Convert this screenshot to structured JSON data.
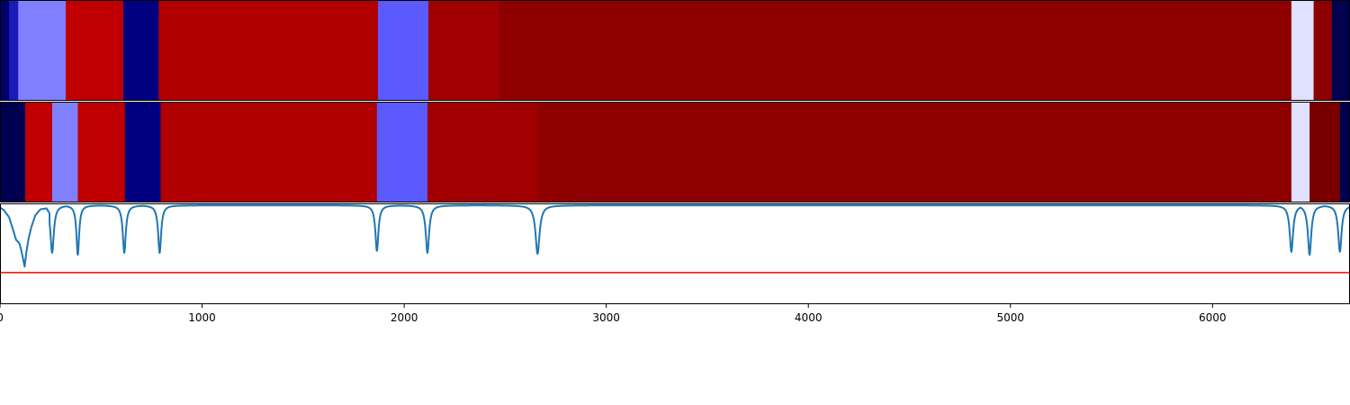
{
  "chart_data": {
    "type": "heatmap",
    "title": "",
    "xlabel": "",
    "ylabel": "",
    "xlim": [
      0,
      6680
    ],
    "grid": false,
    "x_ticks": [
      0,
      1000,
      2000,
      3000,
      4000,
      5000,
      6000
    ],
    "x_tick_labels": [
      "0",
      "1000",
      "2000",
      "3000",
      "4000",
      "5000",
      "6000"
    ],
    "segment_rows": [
      {
        "segments": [
          {
            "start": 0,
            "end": 45,
            "color": "#00006a"
          },
          {
            "start": 45,
            "end": 90,
            "color": "#1a1ab8"
          },
          {
            "start": 90,
            "end": 325,
            "color": "#8080ff"
          },
          {
            "start": 325,
            "end": 610,
            "color": "#c00000"
          },
          {
            "start": 610,
            "end": 785,
            "color": "#000080"
          },
          {
            "start": 785,
            "end": 1870,
            "color": "#b00000"
          },
          {
            "start": 1870,
            "end": 2120,
            "color": "#5a5aff"
          },
          {
            "start": 2120,
            "end": 2470,
            "color": "#a00000"
          },
          {
            "start": 2470,
            "end": 6390,
            "color": "#8e0000"
          },
          {
            "start": 6390,
            "end": 6500,
            "color": "#e0e0ff"
          },
          {
            "start": 6500,
            "end": 6590,
            "color": "#8e0000"
          },
          {
            "start": 6590,
            "end": 6680,
            "color": "#000050"
          }
        ]
      },
      {
        "segments": [
          {
            "start": 0,
            "end": 125,
            "color": "#000050"
          },
          {
            "start": 125,
            "end": 258,
            "color": "#c00000"
          },
          {
            "start": 258,
            "end": 385,
            "color": "#8080ff"
          },
          {
            "start": 385,
            "end": 618,
            "color": "#c00000"
          },
          {
            "start": 618,
            "end": 795,
            "color": "#000080"
          },
          {
            "start": 795,
            "end": 1865,
            "color": "#b00000"
          },
          {
            "start": 1865,
            "end": 2115,
            "color": "#5a5aff"
          },
          {
            "start": 2115,
            "end": 2660,
            "color": "#a00000"
          },
          {
            "start": 2660,
            "end": 6390,
            "color": "#8e0000"
          },
          {
            "start": 6390,
            "end": 6480,
            "color": "#e0e0ff"
          },
          {
            "start": 6480,
            "end": 6630,
            "color": "#7a0000"
          },
          {
            "start": 6630,
            "end": 6680,
            "color": "#000050"
          }
        ]
      }
    ],
    "line_panel": {
      "ylim": [
        -1.0,
        0.02
      ],
      "threshold": {
        "value": -0.68,
        "color": "#ff0000"
      },
      "line_color": "#1f77b4",
      "baseline": 0,
      "curve_head": [
        [
          0,
          -0.02
        ],
        [
          20,
          -0.05
        ],
        [
          45,
          -0.12
        ],
        [
          65,
          -0.25
        ],
        [
          80,
          -0.35
        ],
        [
          95,
          -0.38
        ],
        [
          105,
          -0.45
        ],
        [
          115,
          -0.55
        ],
        [
          122,
          -0.62
        ],
        [
          130,
          -0.48
        ],
        [
          140,
          -0.35
        ],
        [
          155,
          -0.22
        ],
        [
          175,
          -0.1
        ],
        [
          200,
          -0.04
        ],
        [
          230,
          -0.03
        ],
        [
          245,
          -0.08
        ]
      ],
      "dips": [
        {
          "x": 258,
          "depth": -0.48,
          "width": 10
        },
        {
          "x": 385,
          "depth": -0.5,
          "width": 8
        },
        {
          "x": 615,
          "depth": -0.48,
          "width": 9
        },
        {
          "x": 790,
          "depth": -0.48,
          "width": 9
        },
        {
          "x": 1865,
          "depth": -0.46,
          "width": 9
        },
        {
          "x": 2115,
          "depth": -0.48,
          "width": 10
        },
        {
          "x": 2660,
          "depth": -0.49,
          "width": 12
        },
        {
          "x": 6390,
          "depth": -0.47,
          "width": 10
        },
        {
          "x": 6480,
          "depth": -0.5,
          "width": 10
        },
        {
          "x": 6630,
          "depth": -0.47,
          "width": 10
        }
      ]
    }
  }
}
